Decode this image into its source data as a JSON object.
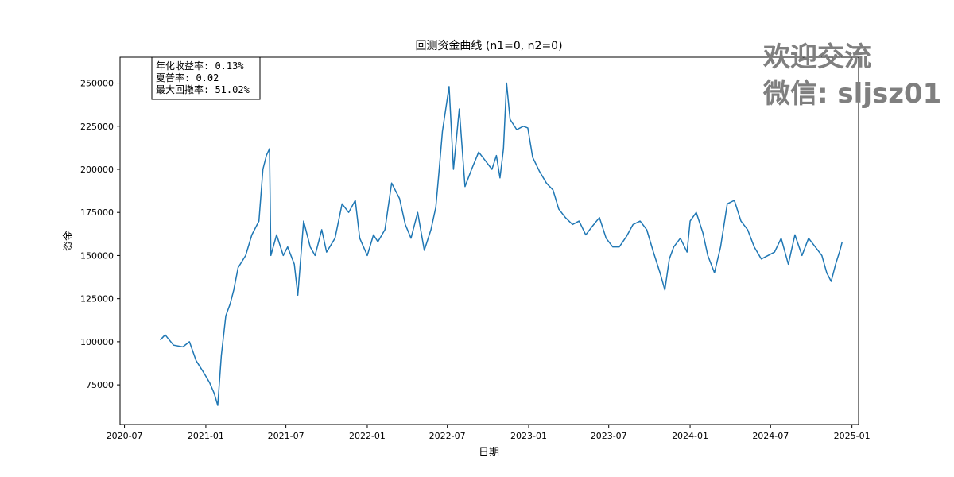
{
  "chart_data": {
    "type": "line",
    "title": "回测资金曲线 (n1=0, n2=0)",
    "xlabel": "日期",
    "ylabel": "资金",
    "x_range": [
      "2020-06-21",
      "2025-01-16"
    ],
    "ylim": [
      52000,
      265000
    ],
    "x_ticks": [
      "2020-07",
      "2021-01",
      "2021-07",
      "2022-01",
      "2022-07",
      "2023-01",
      "2023-07",
      "2024-01",
      "2024-07",
      "2025-01"
    ],
    "y_ticks": [
      75000,
      100000,
      125000,
      150000,
      175000,
      200000,
      225000,
      250000
    ],
    "grid": false,
    "line_color": "#1f77b4",
    "series": [
      {
        "x": [
          "2020-09-20",
          "2020-10-01",
          "2020-10-20",
          "2020-11-10",
          "2020-11-25",
          "2020-12-10",
          "2020-12-25",
          "2021-01-01",
          "2021-01-10",
          "2021-01-20",
          "2021-01-28",
          "2021-02-05",
          "2021-02-15",
          "2021-02-25",
          "2021-03-05",
          "2021-03-15",
          "2021-04-01",
          "2021-04-15",
          "2021-05-01",
          "2021-05-10",
          "2021-05-18",
          "2021-05-25",
          "2021-05-28",
          "2021-06-10",
          "2021-06-25",
          "2021-07-05",
          "2021-07-20",
          "2021-07-28",
          "2021-08-10",
          "2021-08-25",
          "2021-09-05",
          "2021-09-20",
          "2021-10-01",
          "2021-10-20",
          "2021-11-05",
          "2021-11-20",
          "2021-12-05",
          "2021-12-15",
          "2022-01-01",
          "2022-01-15",
          "2022-01-25",
          "2022-02-10",
          "2022-02-25",
          "2022-03-15",
          "2022-03-28",
          "2022-04-10",
          "2022-04-25",
          "2022-05-10",
          "2022-05-25",
          "2022-06-05",
          "2022-06-12",
          "2022-06-20",
          "2022-07-05",
          "2022-07-15",
          "2022-07-28",
          "2022-08-10",
          "2022-08-25",
          "2022-09-10",
          "2022-09-25",
          "2022-10-10",
          "2022-10-20",
          "2022-10-28",
          "2022-11-05",
          "2022-11-12",
          "2022-11-20",
          "2022-12-05",
          "2022-12-20",
          "2022-12-30",
          "2023-01-10",
          "2023-01-25",
          "2023-02-10",
          "2023-02-25",
          "2023-03-10",
          "2023-03-25",
          "2023-04-10",
          "2023-04-25",
          "2023-05-10",
          "2023-05-25",
          "2023-06-10",
          "2023-06-25",
          "2023-07-10",
          "2023-07-25",
          "2023-08-10",
          "2023-08-25",
          "2023-09-10",
          "2023-09-25",
          "2023-10-10",
          "2023-10-25",
          "2023-11-05",
          "2023-11-15",
          "2023-11-25",
          "2023-12-10",
          "2023-12-25",
          "2024-01-01",
          "2024-01-15",
          "2024-01-30",
          "2024-02-10",
          "2024-02-25",
          "2024-03-10",
          "2024-03-25",
          "2024-04-10",
          "2024-04-25",
          "2024-05-10",
          "2024-05-25",
          "2024-06-10",
          "2024-06-25",
          "2024-07-10",
          "2024-07-25",
          "2024-08-10",
          "2024-08-25",
          "2024-09-10",
          "2024-09-25",
          "2024-10-10",
          "2024-10-25",
          "2024-11-05",
          "2024-11-15",
          "2024-11-25",
          "2024-12-05",
          "2024-12-10"
        ],
        "y": [
          101000,
          104000,
          98000,
          97000,
          100000,
          89000,
          83000,
          80000,
          76000,
          70000,
          63000,
          92000,
          115000,
          122000,
          130000,
          143000,
          150000,
          162000,
          170000,
          200000,
          208000,
          212000,
          150000,
          162000,
          150000,
          155000,
          145000,
          127000,
          170000,
          155000,
          150000,
          165000,
          152000,
          160000,
          180000,
          175000,
          182000,
          160000,
          150000,
          162000,
          158000,
          165000,
          192000,
          183000,
          168000,
          160000,
          175000,
          153000,
          165000,
          178000,
          198000,
          222000,
          248000,
          200000,
          235000,
          190000,
          200000,
          210000,
          205000,
          200000,
          208000,
          195000,
          212000,
          250000,
          229000,
          223000,
          225000,
          224000,
          207000,
          199000,
          192000,
          188000,
          177000,
          172000,
          168000,
          170000,
          162000,
          167000,
          172000,
          160000,
          155000,
          155000,
          161000,
          168000,
          170000,
          165000,
          152000,
          140000,
          130000,
          148000,
          155000,
          160000,
          152000,
          170000,
          175000,
          163000,
          150000,
          140000,
          155000,
          180000,
          182000,
          170000,
          165000,
          155000,
          148000,
          150000,
          152000,
          160000,
          145000,
          162000,
          150000,
          160000,
          155000,
          150000,
          140000,
          135000,
          145000,
          153000,
          158000
        ]
      }
    ],
    "stats_box": [
      "年化收益率: 0.13%",
      "夏普率: 0.02",
      "最大回撤率: 51.02%"
    ]
  },
  "watermark": {
    "line1": "欢迎交流",
    "line2": "微信: sljsz01"
  }
}
